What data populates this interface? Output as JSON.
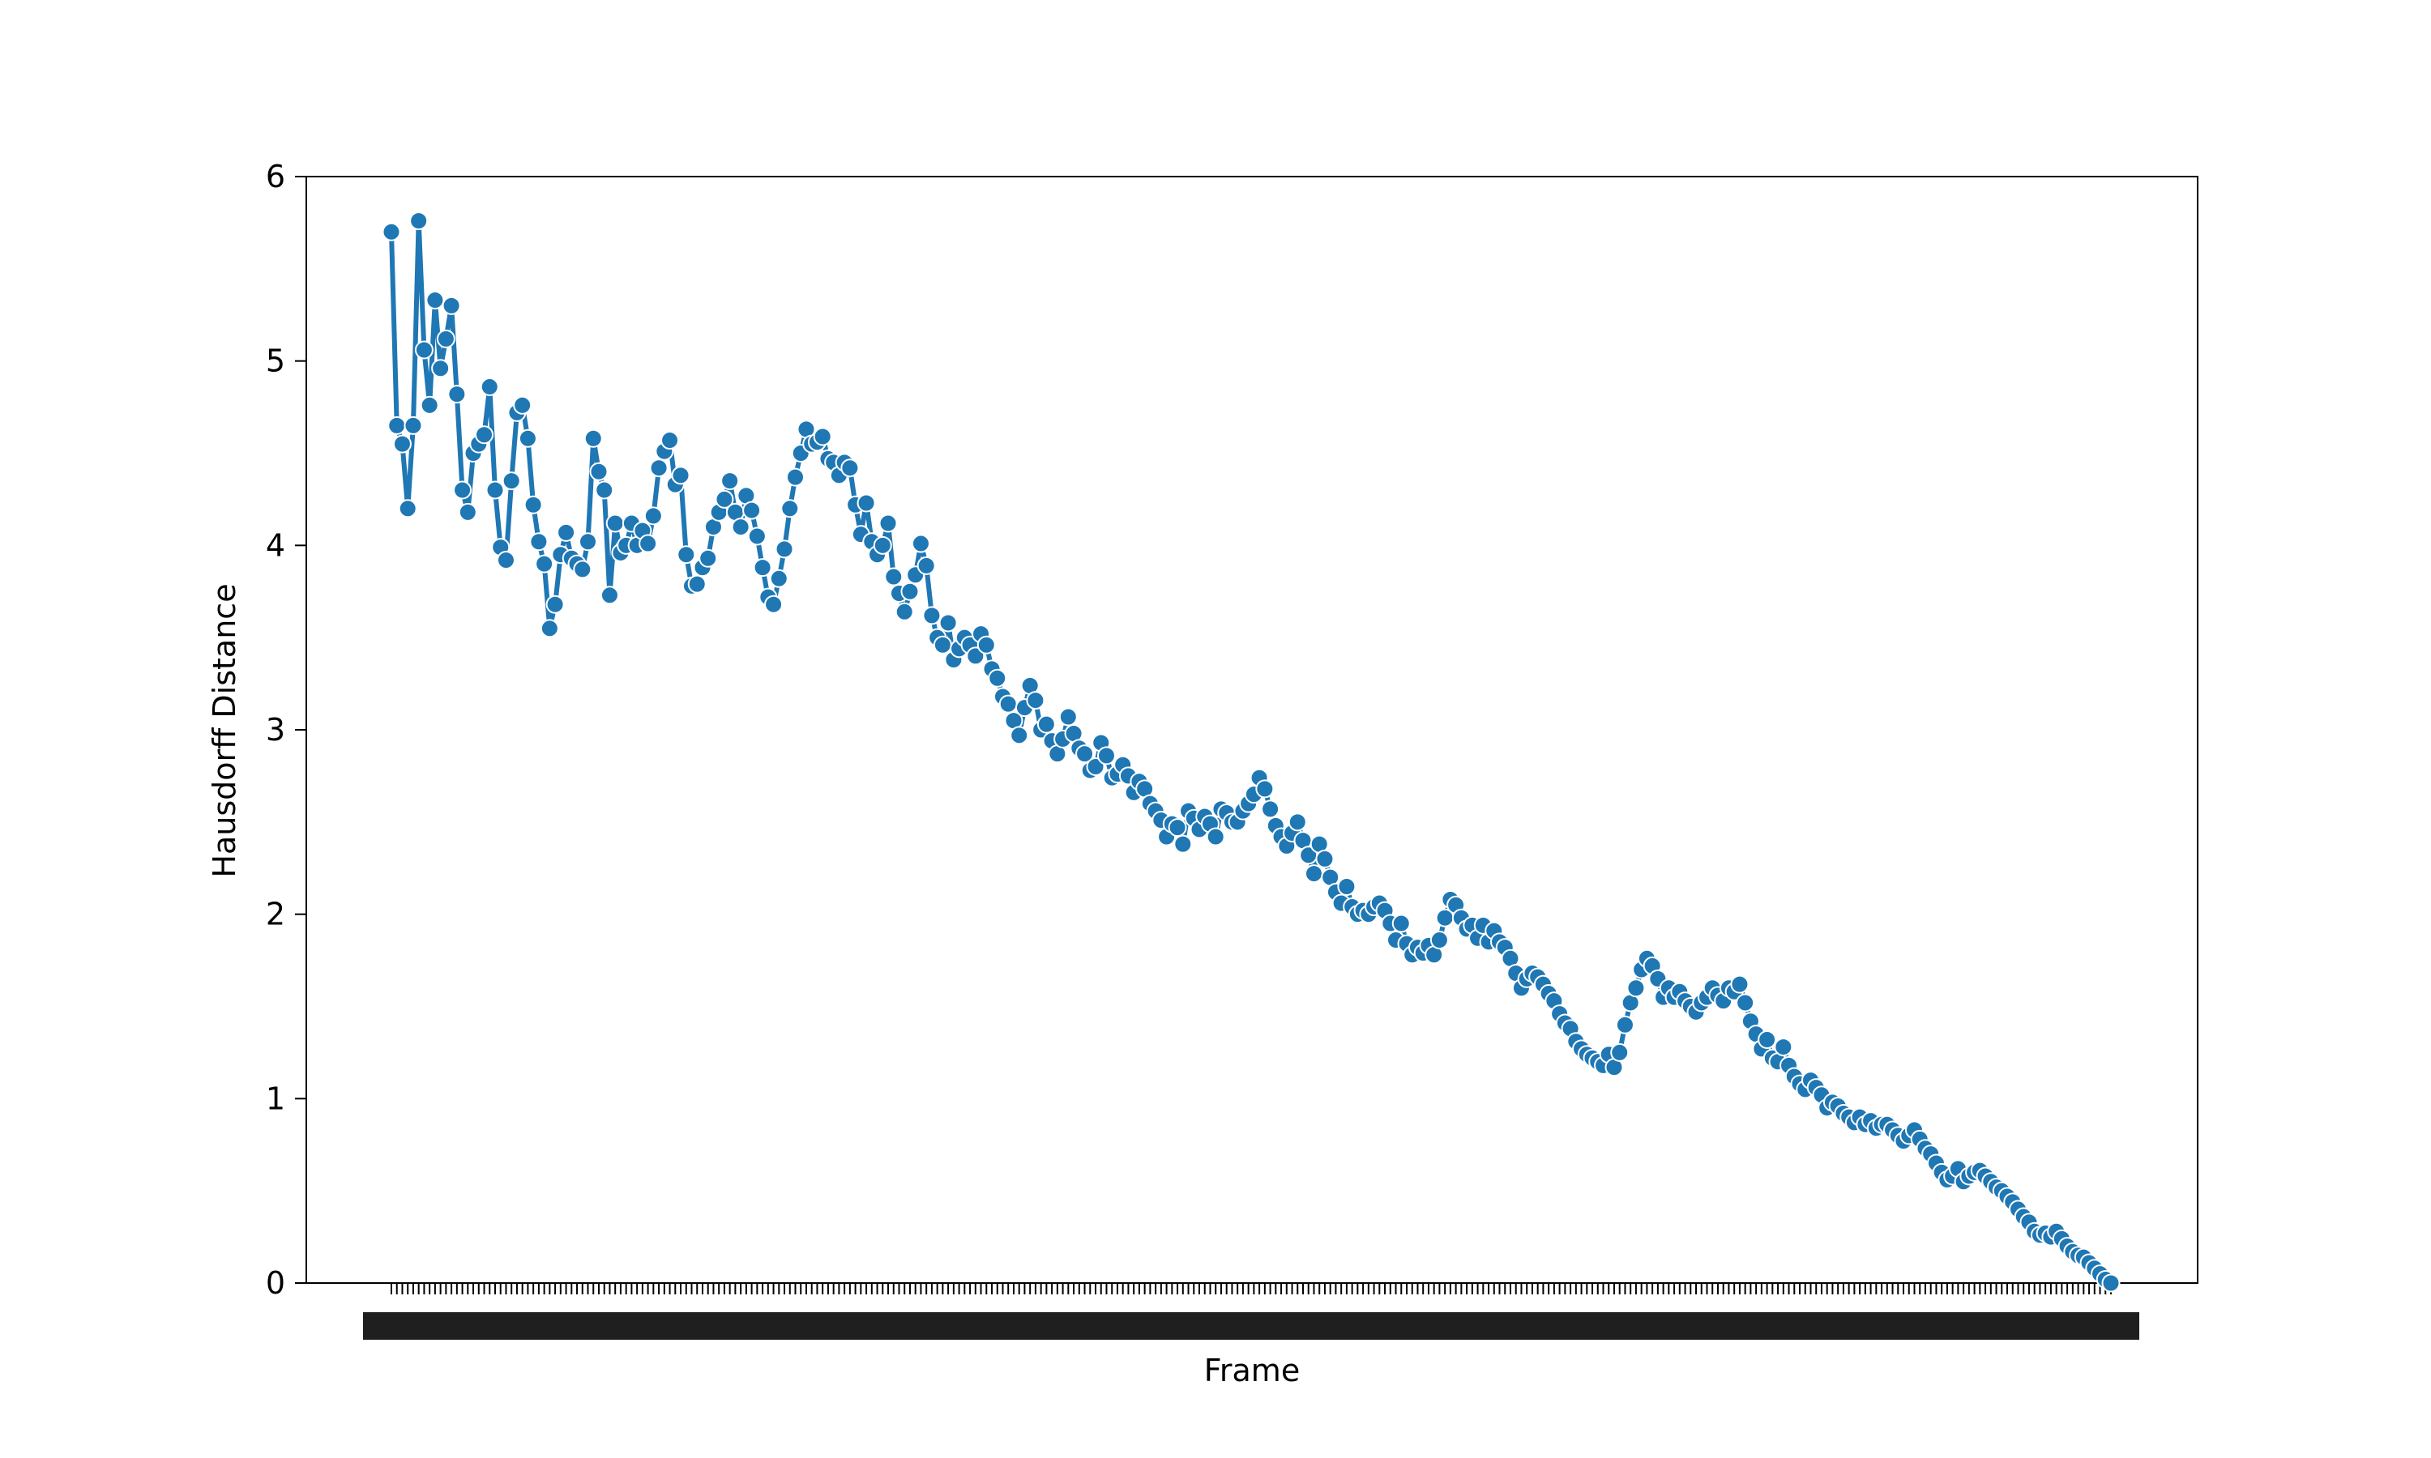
{
  "chart_data": {
    "type": "line",
    "title": "",
    "xlabel": "Frame",
    "ylabel": "Hausdorff Distance",
    "ylim": [
      0,
      6
    ],
    "yticks": [
      0,
      1,
      2,
      3,
      4,
      5,
      6
    ],
    "grid": false,
    "legend": "none",
    "x_tick_labels_note": "overlapping dense frame labels",
    "series": [
      {
        "color": "#1f77b4",
        "marker": "circle",
        "values": [
          5.7,
          4.65,
          4.55,
          4.2,
          4.65,
          5.76,
          5.06,
          4.76,
          5.33,
          4.96,
          5.12,
          5.3,
          4.82,
          4.3,
          4.18,
          4.5,
          4.55,
          4.6,
          4.86,
          4.3,
          3.99,
          3.92,
          4.35,
          4.72,
          4.76,
          4.58,
          4.22,
          4.02,
          3.9,
          3.55,
          3.68,
          3.95,
          4.07,
          3.93,
          3.9,
          3.87,
          4.02,
          4.58,
          4.4,
          4.3,
          3.73,
          4.12,
          3.96,
          4.0,
          4.12,
          4.0,
          4.08,
          4.01,
          4.16,
          4.42,
          4.51,
          4.57,
          4.33,
          4.38,
          3.95,
          3.78,
          3.79,
          3.88,
          3.93,
          4.1,
          4.18,
          4.25,
          4.35,
          4.18,
          4.1,
          4.27,
          4.19,
          4.05,
          3.88,
          3.72,
          3.68,
          3.82,
          3.98,
          4.2,
          4.37,
          4.5,
          4.63,
          4.55,
          4.56,
          4.59,
          4.47,
          4.45,
          4.38,
          4.45,
          4.42,
          4.22,
          4.06,
          4.23,
          4.02,
          3.95,
          4.0,
          4.12,
          3.83,
          3.74,
          3.64,
          3.75,
          3.84,
          4.01,
          3.89,
          3.62,
          3.5,
          3.46,
          3.58,
          3.38,
          3.44,
          3.5,
          3.46,
          3.4,
          3.52,
          3.46,
          3.33,
          3.28,
          3.18,
          3.14,
          3.05,
          2.97,
          3.12,
          3.24,
          3.16,
          3.0,
          3.03,
          2.94,
          2.87,
          2.95,
          3.07,
          2.98,
          2.9,
          2.87,
          2.78,
          2.8,
          2.93,
          2.86,
          2.74,
          2.76,
          2.81,
          2.75,
          2.66,
          2.72,
          2.68,
          2.6,
          2.56,
          2.51,
          2.42,
          2.49,
          2.47,
          2.38,
          2.56,
          2.52,
          2.46,
          2.53,
          2.49,
          2.42,
          2.57,
          2.55,
          2.5,
          2.5,
          2.56,
          2.6,
          2.65,
          2.74,
          2.68,
          2.57,
          2.48,
          2.42,
          2.37,
          2.44,
          2.5,
          2.4,
          2.32,
          2.22,
          2.38,
          2.3,
          2.2,
          2.12,
          2.06,
          2.15,
          2.04,
          2.0,
          2.02,
          2.0,
          2.04,
          2.06,
          2.02,
          1.95,
          1.86,
          1.95,
          1.84,
          1.78,
          1.82,
          1.79,
          1.83,
          1.78,
          1.86,
          1.98,
          2.08,
          2.05,
          1.98,
          1.92,
          1.94,
          1.87,
          1.94,
          1.85,
          1.91,
          1.85,
          1.82,
          1.76,
          1.68,
          1.6,
          1.65,
          1.68,
          1.66,
          1.62,
          1.57,
          1.53,
          1.46,
          1.41,
          1.38,
          1.31,
          1.27,
          1.24,
          1.22,
          1.2,
          1.18,
          1.24,
          1.17,
          1.25,
          1.4,
          1.52,
          1.6,
          1.7,
          1.76,
          1.72,
          1.65,
          1.55,
          1.6,
          1.55,
          1.58,
          1.53,
          1.5,
          1.47,
          1.52,
          1.55,
          1.6,
          1.56,
          1.53,
          1.6,
          1.58,
          1.62,
          1.52,
          1.42,
          1.35,
          1.27,
          1.32,
          1.22,
          1.2,
          1.28,
          1.18,
          1.12,
          1.08,
          1.05,
          1.1,
          1.06,
          1.02,
          0.95,
          0.98,
          0.96,
          0.92,
          0.9,
          0.87,
          0.9,
          0.86,
          0.88,
          0.84,
          0.86,
          0.86,
          0.83,
          0.8,
          0.77,
          0.8,
          0.83,
          0.78,
          0.73,
          0.7,
          0.65,
          0.6,
          0.56,
          0.58,
          0.62,
          0.55,
          0.58,
          0.6,
          0.61,
          0.58,
          0.55,
          0.52,
          0.5,
          0.47,
          0.44,
          0.4,
          0.36,
          0.33,
          0.28,
          0.26,
          0.27,
          0.25,
          0.28,
          0.24,
          0.2,
          0.17,
          0.15,
          0.14,
          0.11,
          0.08,
          0.05,
          0.02,
          0.0
        ]
      }
    ]
  }
}
